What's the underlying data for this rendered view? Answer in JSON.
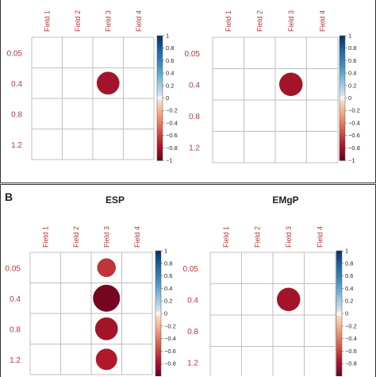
{
  "colors": {
    "negative": "#67001f",
    "positive": "#053061",
    "label": "#b23a3a",
    "grid": "#bfbfbf"
  },
  "panels": [
    {
      "letter": "",
      "titles": []
    },
    {
      "letter": "B",
      "titles": [
        "ESP",
        "EMgP"
      ]
    }
  ],
  "chart_data": [
    {
      "type": "heatmap",
      "panel": "",
      "title": "",
      "columns": [
        "Field 1",
        "Field 2",
        "Field 3",
        "Field 4"
      ],
      "rows": [
        "0.05",
        "0.4",
        "0.8",
        "1.2"
      ],
      "values": [
        [
          0,
          0,
          0,
          0
        ],
        [
          0,
          0,
          -0.8,
          0
        ],
        [
          0,
          0,
          0,
          0
        ],
        [
          0,
          0,
          0,
          0
        ]
      ],
      "colorbar": {
        "range": [
          -1,
          1
        ],
        "ticks": [
          "1",
          "0.8",
          "0.6",
          "0.4",
          "0.2",
          "0",
          "−0.2",
          "−0.4",
          "−0.6",
          "−0.8",
          "−1"
        ]
      }
    },
    {
      "type": "heatmap",
      "panel": "",
      "title": "",
      "columns": [
        "Field 1",
        "Field 2",
        "Field 3",
        "Field 4"
      ],
      "rows": [
        "0.05",
        "0.4",
        "0.8",
        "1.2"
      ],
      "values": [
        [
          0,
          0,
          0,
          0
        ],
        [
          0,
          0,
          -0.8,
          0
        ],
        [
          0,
          0,
          0,
          0
        ],
        [
          0,
          0,
          0,
          0
        ]
      ],
      "colorbar": {
        "range": [
          -1,
          1
        ],
        "ticks": [
          "1",
          "0.8",
          "0.6",
          "0.4",
          "0.2",
          "0",
          "−0.2",
          "−0.4",
          "−0.6",
          "−0.8",
          "−1"
        ]
      }
    },
    {
      "type": "heatmap",
      "panel": "B",
      "title": "ESP",
      "columns": [
        "Field 1",
        "Field 2",
        "Field 3",
        "Field 4"
      ],
      "rows": [
        "0.05",
        "0.4",
        "0.8",
        "1.2"
      ],
      "values": [
        [
          0,
          0,
          -0.65,
          0
        ],
        [
          0,
          0,
          -0.95,
          0
        ],
        [
          0,
          0,
          -0.8,
          0
        ],
        [
          0,
          0,
          -0.75,
          0
        ]
      ],
      "colorbar": {
        "range": [
          -1,
          1
        ],
        "ticks": [
          "1",
          "0.8",
          "0.6",
          "0.4",
          "0.2",
          "0",
          "−0.2",
          "−0.4",
          "−0.6",
          "−0.8"
        ]
      }
    },
    {
      "type": "heatmap",
      "panel": "B",
      "title": "EMgP",
      "columns": [
        "Field 1",
        "Field 2",
        "Field 3",
        "Field 4"
      ],
      "rows": [
        "0.05",
        "0.4",
        "0.8",
        "1.2"
      ],
      "values": [
        [
          0,
          0,
          0,
          0
        ],
        [
          0,
          0,
          -0.8,
          0
        ],
        [
          0,
          0,
          0,
          0
        ],
        [
          0,
          0,
          0,
          0
        ]
      ],
      "colorbar": {
        "range": [
          -1,
          1
        ],
        "ticks": [
          "1",
          "0.8",
          "0.6",
          "0.4",
          "0.2",
          "0",
          "−0.2",
          "−0.4",
          "−0.6",
          "−0.8"
        ]
      }
    }
  ]
}
